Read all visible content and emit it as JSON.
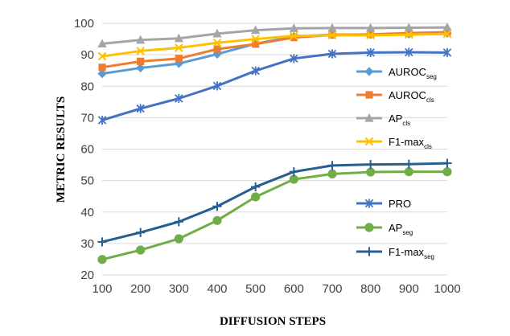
{
  "chart_data": {
    "type": "line",
    "xlabel": "DIFFUSION STEPS",
    "ylabel": "METRIC RESULTS",
    "x": [
      100,
      200,
      300,
      400,
      500,
      600,
      700,
      800,
      900,
      1000
    ],
    "xlim": [
      100,
      1000
    ],
    "ylim": [
      20,
      100
    ],
    "yticks": [
      20,
      30,
      40,
      50,
      60,
      70,
      80,
      90,
      100
    ],
    "grid": "horizontal",
    "legend_position": "right (two groups)",
    "series": [
      {
        "name": "AUROC",
        "sub": "seg",
        "color": "#5B9BD5",
        "marker": "diamond",
        "values": [
          84.0,
          85.8,
          87.2,
          90.2,
          93.5,
          95.8,
          96.4,
          96.4,
          96.6,
          96.9
        ]
      },
      {
        "name": "AUROC",
        "sub": "cls",
        "color": "#ED7D31",
        "marker": "square",
        "values": [
          86.0,
          87.9,
          88.8,
          91.8,
          93.4,
          95.5,
          96.3,
          96.5,
          96.9,
          97.2
        ]
      },
      {
        "name": "AP",
        "sub": "cls",
        "color": "#A5A5A5",
        "marker": "triangle",
        "values": [
          93.5,
          94.7,
          95.2,
          96.7,
          97.8,
          98.4,
          98.5,
          98.5,
          98.6,
          98.7
        ]
      },
      {
        "name": "F1-max",
        "sub": "cls",
        "color": "#FFC000",
        "marker": "x",
        "values": [
          89.5,
          91.2,
          92.2,
          93.8,
          95.0,
          96.0,
          96.2,
          96.2,
          96.4,
          96.6
        ]
      },
      {
        "name": "PRO",
        "sub": "",
        "color": "#4472C4",
        "marker": "star",
        "values": [
          69.2,
          72.9,
          76.1,
          80.1,
          84.9,
          88.8,
          90.3,
          90.7,
          90.8,
          90.7
        ]
      },
      {
        "name": "AP",
        "sub": "seg",
        "color": "#70AD47",
        "marker": "circle",
        "values": [
          24.9,
          27.9,
          31.5,
          37.3,
          44.8,
          50.4,
          52.1,
          52.7,
          52.8,
          52.8
        ]
      },
      {
        "name": "F1-max",
        "sub": "seg",
        "color": "#255E91",
        "marker": "plus",
        "values": [
          30.5,
          33.5,
          36.9,
          41.8,
          48.0,
          52.8,
          54.8,
          55.1,
          55.2,
          55.5
        ]
      }
    ]
  }
}
